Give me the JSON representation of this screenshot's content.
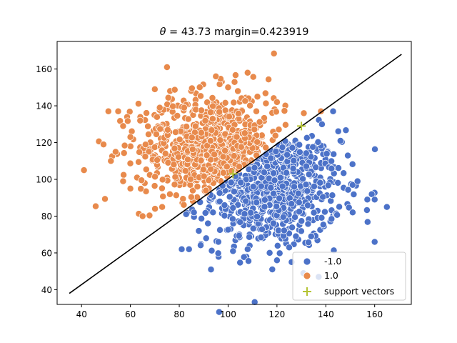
{
  "chart_data": {
    "type": "scatter",
    "title": "θ = 43.73   margin=0.423919",
    "title_theta": "θ",
    "title_rest": " = 43.73   margin=0.423919",
    "xlabel": "",
    "ylabel": "",
    "xlim": [
      30,
      175
    ],
    "ylim": [
      32,
      175
    ],
    "xticks": [
      40,
      60,
      80,
      100,
      120,
      140,
      160
    ],
    "yticks": [
      40,
      60,
      80,
      100,
      120,
      140,
      160
    ],
    "grid": false,
    "legend_position": "lower-right",
    "decision_line": {
      "x": [
        35,
        171
      ],
      "y": [
        38,
        168
      ],
      "color": "#000000"
    },
    "series": [
      {
        "name": "-1.0",
        "color": "#4c72c8",
        "marker": "circle",
        "center": [
          118,
          95
        ],
        "spread": [
          14,
          16
        ],
        "count": 700,
        "points": [
          [
            93,
            51
          ],
          [
            126,
            55
          ],
          [
            120,
            56
          ],
          [
            84,
            62
          ],
          [
            81,
            62
          ],
          [
            160,
            66
          ],
          [
            102,
            61
          ],
          [
            165,
            85
          ],
          [
            157,
            89
          ],
          [
            160,
            89
          ],
          [
            151,
            82
          ],
          [
            143,
            137
          ],
          [
            146,
            121
          ],
          [
            149,
            113
          ],
          [
            151,
            97
          ],
          [
            153,
            99
          ],
          [
            134,
            69
          ],
          [
            125,
            63
          ],
          [
            117,
            60
          ],
          [
            108,
            62
          ],
          [
            86,
            82
          ],
          [
            88,
            72
          ],
          [
            91,
            68
          ],
          [
            96,
            66
          ]
        ]
      },
      {
        "name": "1.0",
        "color": "#e88a4c",
        "marker": "circle",
        "center": [
          94,
          117
        ],
        "spread": [
          15,
          15
        ],
        "count": 700,
        "points": [
          [
            41,
            105
          ],
          [
            65,
            80
          ],
          [
            75,
            161
          ],
          [
            108,
            158
          ],
          [
            95,
            156
          ],
          [
            51,
            137
          ],
          [
            55,
            137
          ],
          [
            49,
            119
          ],
          [
            52,
            110
          ],
          [
            57,
            99
          ],
          [
            60,
            95
          ],
          [
            73,
            85
          ],
          [
            138,
            137
          ],
          [
            131,
            136
          ],
          [
            120,
            142
          ],
          [
            112,
            145
          ],
          [
            104,
            148
          ],
          [
            70,
            149
          ],
          [
            72,
            139
          ],
          [
            64,
            132
          ],
          [
            60,
            123
          ],
          [
            57,
            129
          ],
          [
            100,
            150
          ],
          [
            82,
            139
          ]
        ]
      },
      {
        "name": "support vectors",
        "color": "#b5c435",
        "marker": "plus",
        "points": [
          [
            130,
            129
          ],
          [
            102,
            103
          ]
        ]
      }
    ]
  }
}
